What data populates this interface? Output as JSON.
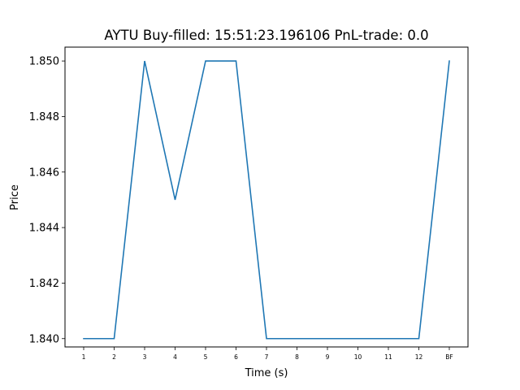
{
  "chart_data": {
    "type": "line",
    "title": "AYTU  Buy-filled:  15:51:23.196106  PnL-trade:  0.0",
    "xlabel": "Time (s)",
    "ylabel": "Price",
    "categories": [
      "1",
      "2",
      "3",
      "4",
      "5",
      "6",
      "7",
      "8",
      "9",
      "10",
      "11",
      "12",
      "BF"
    ],
    "series": [
      {
        "values": [
          1.84,
          1.84,
          1.85,
          1.845,
          1.85,
          1.85,
          1.84,
          1.84,
          1.84,
          1.84,
          1.84,
          1.84,
          1.85
        ]
      }
    ],
    "ylim": [
      1.8397,
      1.8505
    ],
    "yticks": [
      1.84,
      1.842,
      1.844,
      1.846,
      1.848,
      1.85
    ],
    "ytick_labels": [
      "1.840",
      "1.842",
      "1.844",
      "1.846",
      "1.848",
      "1.850"
    ],
    "grid": false,
    "line_color": "#1f77b4"
  }
}
